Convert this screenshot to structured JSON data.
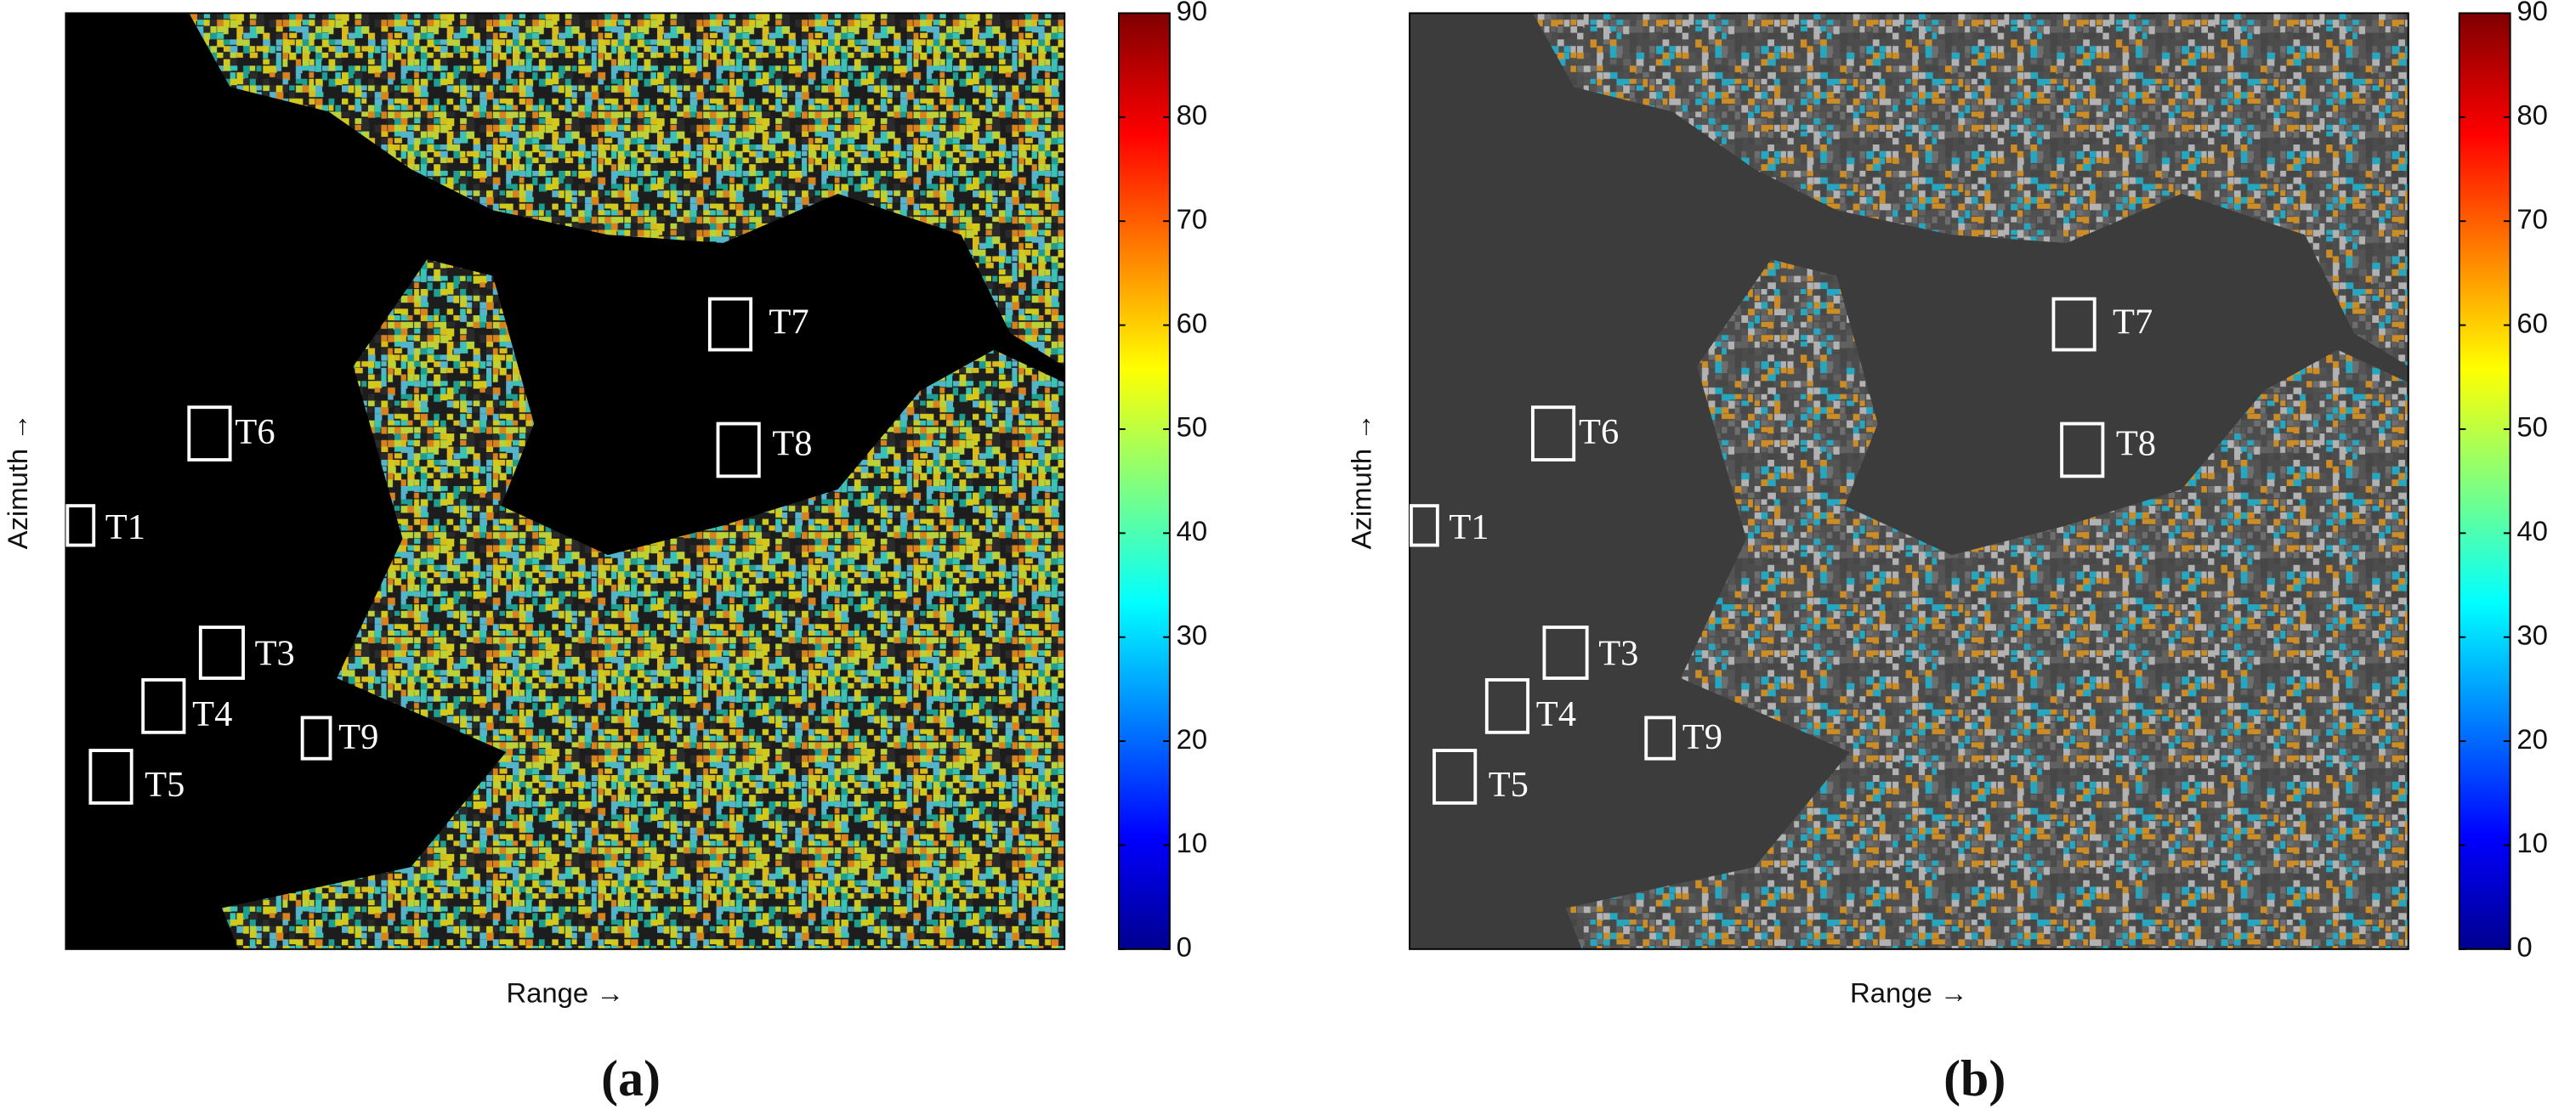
{
  "panels": [
    {
      "caption": "(a)",
      "xlabel": "Range →",
      "ylabel": "Azimuth →",
      "colorbar": {
        "lim": [
          0,
          90
        ],
        "ticks": [
          0,
          10,
          20,
          30,
          40,
          50,
          60,
          70,
          80,
          90
        ]
      },
      "targets": [
        "T1",
        "T3",
        "T4",
        "T5",
        "T6",
        "T7",
        "T8",
        "T9"
      ]
    },
    {
      "caption": "(b)",
      "xlabel": "Range →",
      "ylabel": "Azimuth →",
      "colorbar": {
        "lim": [
          0,
          90
        ],
        "ticks": [
          0,
          10,
          20,
          30,
          40,
          50,
          60,
          70,
          80,
          90
        ]
      },
      "targets": [
        "T1",
        "T3",
        "T4",
        "T5",
        "T6",
        "T7",
        "T8",
        "T9"
      ]
    }
  ]
}
